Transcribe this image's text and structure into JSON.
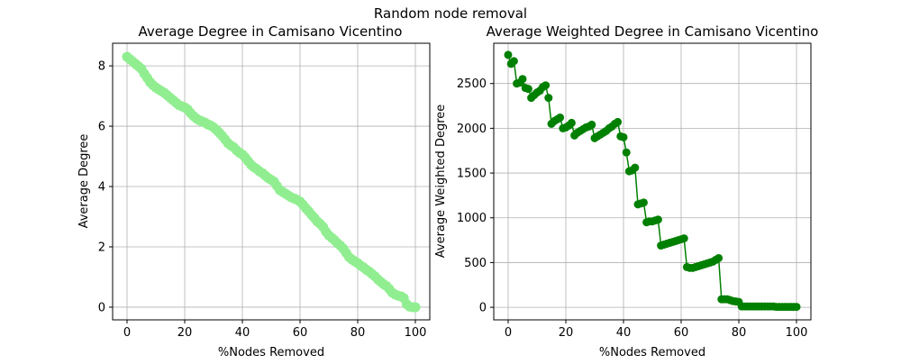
{
  "figure": {
    "suptitle": "Random node removal"
  },
  "chart_data": [
    {
      "type": "scatter",
      "title": "Average Degree in Camisano Vicentino",
      "xlabel": "%Nodes Removed",
      "ylabel": "Average Degree",
      "xlim": [
        -5,
        105
      ],
      "ylim": [
        -0.42,
        8.75
      ],
      "xticks": [
        0,
        20,
        40,
        60,
        80,
        100
      ],
      "yticks": [
        0,
        2,
        4,
        6,
        8
      ],
      "grid": true,
      "color": "#90ee90",
      "series": [
        {
          "x": [
            0,
            1,
            2,
            3,
            4,
            5,
            6,
            7,
            8,
            9,
            10,
            11,
            12,
            13,
            14,
            15,
            16,
            17,
            18,
            19,
            20,
            21,
            22,
            23,
            24,
            25,
            26,
            27,
            28,
            29,
            30,
            31,
            32,
            33,
            34,
            35,
            36,
            37,
            38,
            39,
            40,
            41,
            42,
            43,
            44,
            45,
            46,
            47,
            48,
            49,
            50,
            51,
            52,
            53,
            54,
            55,
            56,
            57,
            58,
            59,
            60,
            61,
            62,
            63,
            64,
            65,
            66,
            67,
            68,
            69,
            70,
            71,
            72,
            73,
            74,
            75,
            76,
            77,
            78,
            79,
            80,
            81,
            82,
            83,
            84,
            85,
            86,
            87,
            88,
            89,
            90,
            91,
            92,
            93,
            94,
            95,
            96,
            97,
            98,
            99,
            100
          ],
          "y": [
            8.3,
            8.22,
            8.14,
            8.06,
            7.98,
            7.9,
            7.74,
            7.6,
            7.46,
            7.36,
            7.28,
            7.22,
            7.16,
            7.1,
            7.02,
            6.94,
            6.86,
            6.78,
            6.7,
            6.66,
            6.62,
            6.56,
            6.44,
            6.34,
            6.26,
            6.2,
            6.16,
            6.12,
            6.06,
            6.02,
            5.96,
            5.88,
            5.78,
            5.68,
            5.56,
            5.44,
            5.36,
            5.3,
            5.2,
            5.12,
            5.06,
            4.96,
            4.84,
            4.72,
            4.64,
            4.58,
            4.5,
            4.44,
            4.36,
            4.28,
            4.22,
            4.16,
            4.02,
            3.88,
            3.82,
            3.76,
            3.7,
            3.64,
            3.6,
            3.56,
            3.5,
            3.4,
            3.28,
            3.18,
            3.06,
            2.96,
            2.84,
            2.76,
            2.66,
            2.5,
            2.38,
            2.3,
            2.22,
            2.12,
            2.04,
            1.94,
            1.8,
            1.66,
            1.58,
            1.52,
            1.46,
            1.38,
            1.32,
            1.24,
            1.18,
            1.1,
            1.02,
            0.92,
            0.84,
            0.76,
            0.7,
            0.6,
            0.48,
            0.42,
            0.38,
            0.36,
            0.3,
            0.1,
            0.02,
            0.0,
            0.0
          ]
        }
      ]
    },
    {
      "type": "line",
      "title": "Average Weighted Degree in Camisano Vicentino",
      "xlabel": "%Nodes Removed",
      "ylabel": "Average Weighted Degree",
      "xlim": [
        -5,
        105
      ],
      "ylim": [
        -140,
        2950
      ],
      "xticks": [
        0,
        20,
        40,
        60,
        80,
        100
      ],
      "yticks": [
        0,
        500,
        1000,
        1500,
        2000,
        2500
      ],
      "grid": true,
      "color": "#008000",
      "series": [
        {
          "x": [
            0,
            1,
            2,
            3,
            4,
            5,
            6,
            7,
            8,
            9,
            10,
            11,
            12,
            13,
            14,
            15,
            16,
            17,
            18,
            19,
            20,
            21,
            22,
            23,
            24,
            25,
            26,
            27,
            28,
            29,
            30,
            31,
            32,
            33,
            34,
            35,
            36,
            37,
            38,
            39,
            40,
            41,
            42,
            43,
            44,
            45,
            46,
            47,
            48,
            49,
            50,
            51,
            52,
            53,
            54,
            55,
            56,
            57,
            58,
            59,
            60,
            61,
            62,
            63,
            64,
            65,
            66,
            67,
            68,
            69,
            70,
            71,
            72,
            73,
            74,
            75,
            76,
            77,
            78,
            79,
            80,
            81,
            82,
            83,
            84,
            85,
            86,
            87,
            88,
            89,
            90,
            91,
            92,
            93,
            94,
            95,
            96,
            97,
            98,
            99,
            100
          ],
          "y": [
            2820,
            2720,
            2750,
            2500,
            2510,
            2550,
            2450,
            2440,
            2340,
            2370,
            2400,
            2420,
            2460,
            2480,
            2340,
            2050,
            2080,
            2100,
            2120,
            2000,
            2010,
            2030,
            2060,
            1920,
            1950,
            1970,
            1990,
            2010,
            2020,
            2040,
            1890,
            1910,
            1930,
            1950,
            1970,
            2000,
            2020,
            2050,
            2070,
            1910,
            1900,
            1730,
            1520,
            1530,
            1560,
            1150,
            1160,
            1170,
            950,
            960,
            960,
            970,
            980,
            690,
            700,
            710,
            720,
            730,
            740,
            750,
            760,
            770,
            450,
            440,
            440,
            450,
            460,
            470,
            480,
            490,
            500,
            510,
            530,
            550,
            90,
            90,
            90,
            80,
            70,
            65,
            60,
            10,
            10,
            10,
            10,
            10,
            10,
            10,
            10,
            10,
            10,
            10,
            10,
            5,
            5,
            5,
            5,
            5,
            5,
            5,
            5
          ]
        }
      ]
    }
  ]
}
